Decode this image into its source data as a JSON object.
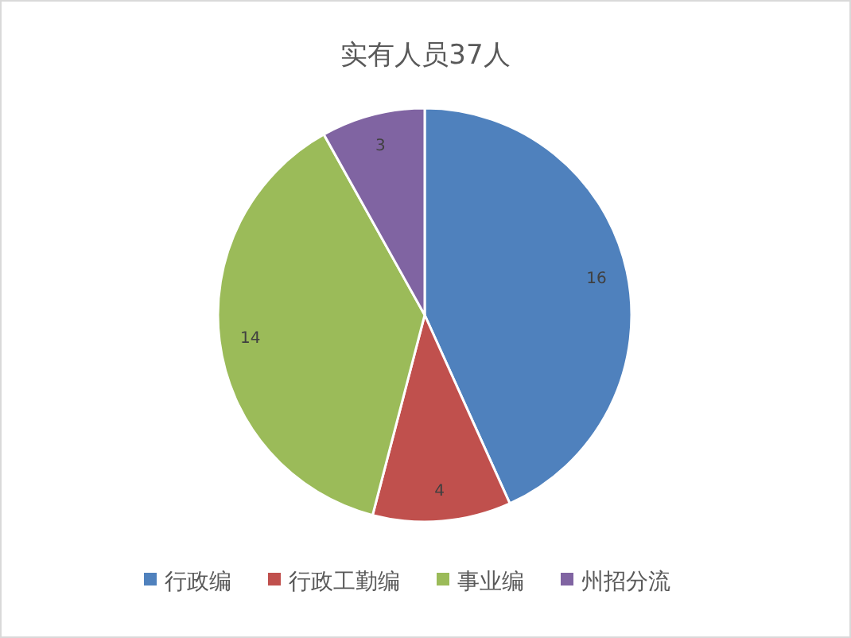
{
  "chart_data": {
    "type": "pie",
    "title": "实有人员37人",
    "categories": [
      "行政编",
      "行政工勤编",
      "事业编",
      "州招分流"
    ],
    "values": [
      16,
      4,
      14,
      3
    ],
    "colors": [
      "#4f81bd",
      "#c0504d",
      "#9bbb59",
      "#8064a2"
    ],
    "data_labels": true,
    "legend": "bottom"
  }
}
